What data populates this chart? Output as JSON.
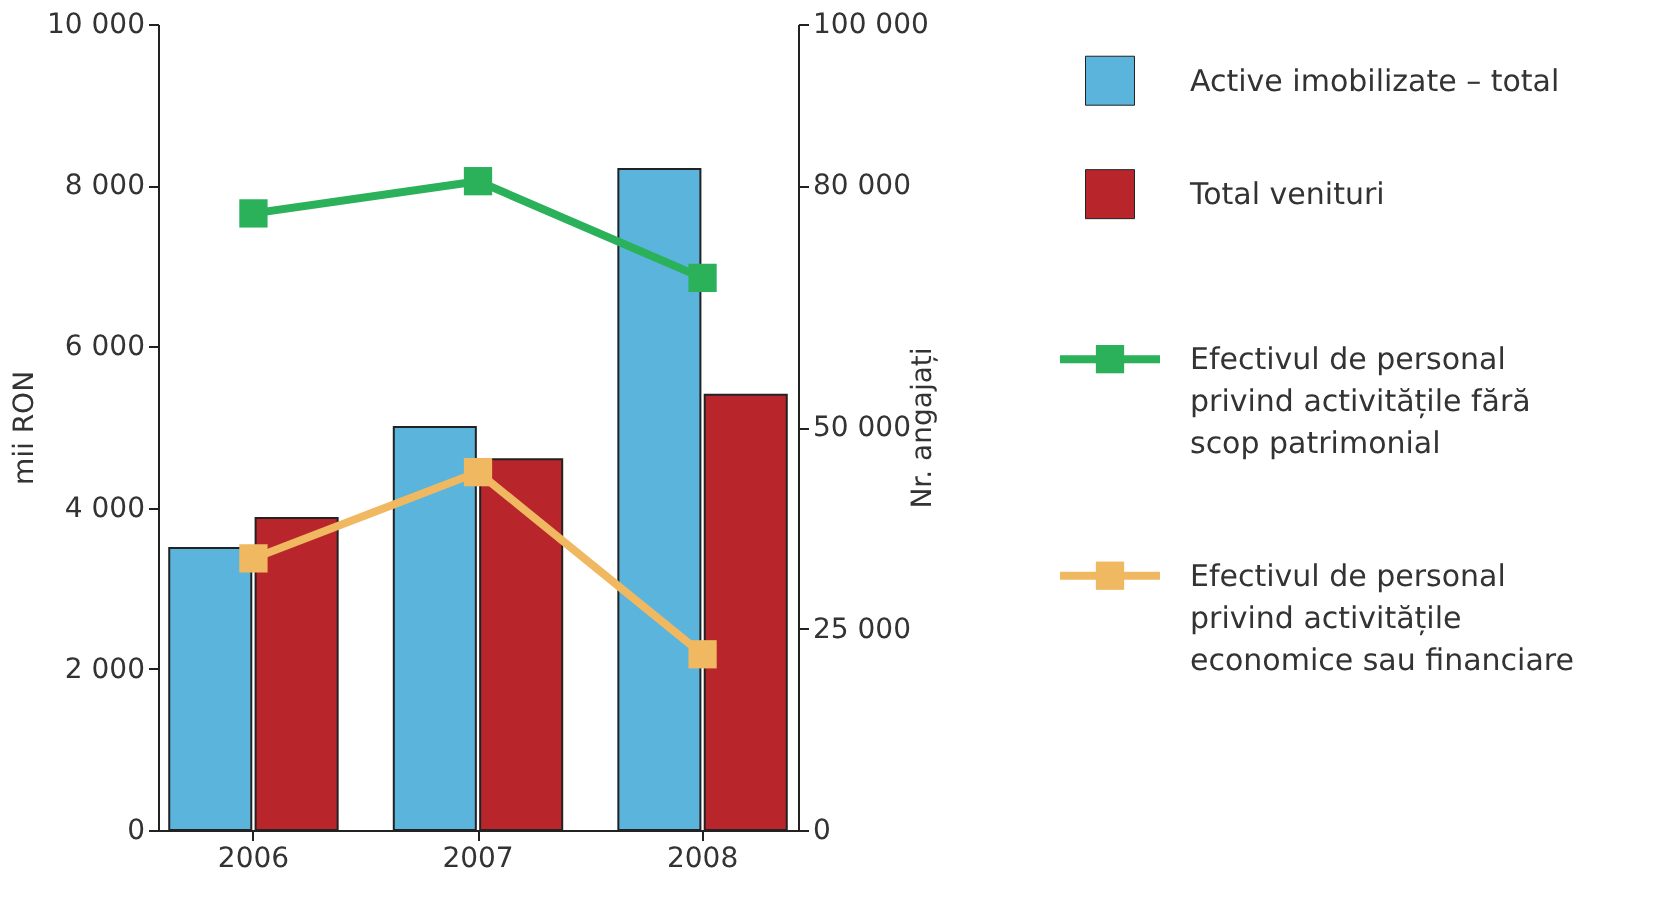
{
  "chart_data": {
    "type": "bar",
    "categories": [
      "2006",
      "2007",
      "2008"
    ],
    "ylabel": "mii RON",
    "y2label": "Nr. angajați",
    "ylim": [
      0,
      10000
    ],
    "yticks": [
      0,
      {
        "value": 2000,
        "label": "2 000"
      },
      {
        "value": 4000,
        "label": "4 000"
      },
      {
        "value": 6000,
        "label": "6 000"
      },
      {
        "value": 8000,
        "label": "8 000"
      },
      {
        "value": 10000,
        "label": "10 000"
      }
    ],
    "y2lim": [
      0,
      100000
    ],
    "y2ticks": [
      0,
      {
        "value": 25000,
        "label": "25 000"
      },
      {
        "value": 50000,
        "label": "50 000"
      },
      {
        "value": 80000,
        "label": "80 000"
      },
      {
        "value": 100000,
        "label": "100 000"
      }
    ],
    "legend": "right",
    "grid": false,
    "marker": "square",
    "series": [
      {
        "name": "Active imobilizate – total",
        "color": "#5ab4dc",
        "values": [
          3500,
          5000,
          8200
        ]
      },
      {
        "name": "Total venituri",
        "color": "#b8262c",
        "values": [
          3870,
          4600,
          5400
        ]
      },
      {
        "name": "Efectivul de personal privind activitățile fără scop patrimonial",
        "color": "#2ab15a",
        "type": "line",
        "axis": "y2",
        "values": [
          76500,
          80500,
          68500
        ]
      },
      {
        "name": "Efectivul de personal privind activitățile economice sau financiare",
        "color": "#f0b860",
        "type": "line",
        "axis": "y2",
        "values": [
          33700,
          44400,
          21800
        ]
      }
    ]
  }
}
